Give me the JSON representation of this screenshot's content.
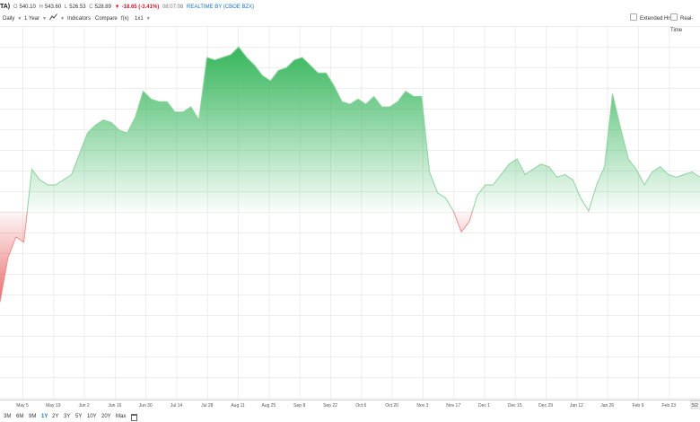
{
  "quote_bar": {
    "symbol": "TA)",
    "open_label": "O",
    "open": "540.10",
    "high_label": "H",
    "high": "543.60",
    "low_label": "L",
    "low": "526.53",
    "close_label": "C",
    "close": "528.89",
    "change": "-18.65 (-3.41%)",
    "time": "08:07:08",
    "realtime": "REALTIME BY (CBOE BZX)"
  },
  "toolbar": {
    "interval": "Daily",
    "period": "1 Year",
    "chart_style_icon": "line-chart-icon",
    "indicators": "Indicators",
    "compare": "Compare",
    "fx": "f(x)",
    "layout": "1x1",
    "extended_hours": "Extended Hrs",
    "real_time": "Real-Time"
  },
  "ranges": {
    "items": [
      "3M",
      "6M",
      "9M",
      "1Y",
      "2Y",
      "3Y",
      "5Y",
      "10Y",
      "20Y",
      "Max"
    ],
    "active": "1Y",
    "calendar_icon": "calendar-icon"
  },
  "colors": {
    "up": "#34b55a",
    "down": "#e23c3c",
    "realtime": "#1a73c9",
    "grid": "#ededed"
  },
  "chart_data": {
    "type": "area",
    "baseline_color_split": true,
    "grid": true,
    "x_tick_labels": [
      "May 5",
      "May 19",
      "Jun 2",
      "Jun 16",
      "Jun 30",
      "Jul 14",
      "Jul 28",
      "Aug 11",
      "Aug 25",
      "Sep 8",
      "Sep 22",
      "Oct 6",
      "Oct 20",
      "Nov 3",
      "Nov 17",
      "Dec 1",
      "Dec 15",
      "Dec 29",
      "Jan 12",
      "Jan 26",
      "Feb 9",
      "Feb 23"
    ],
    "last_label": "5/2",
    "x": [
      "Apr 28",
      "May 1",
      "May 5",
      "May 8",
      "May 12",
      "May 15",
      "May 19",
      "May 22",
      "May 27",
      "May 30",
      "Jun 2",
      "Jun 5",
      "Jun 9",
      "Jun 12",
      "Jun 16",
      "Jun 19",
      "Jun 23",
      "Jun 26",
      "Jun 30",
      "Jul 3",
      "Jul 7",
      "Jul 10",
      "Jul 14",
      "Jul 17",
      "Jul 21",
      "Jul 24",
      "Jul 28",
      "Jul 31",
      "Aug 4",
      "Aug 7",
      "Aug 11",
      "Aug 14",
      "Aug 18",
      "Aug 21",
      "Aug 25",
      "Aug 28",
      "Sep 2",
      "Sep 5",
      "Sep 8",
      "Sep 11",
      "Sep 15",
      "Sep 18",
      "Sep 22",
      "Sep 25",
      "Sep 29",
      "Oct 2",
      "Oct 6",
      "Oct 9",
      "Oct 13",
      "Oct 16",
      "Oct 20",
      "Oct 23",
      "Oct 27",
      "Oct 30",
      "Nov 3",
      "Nov 6",
      "Nov 10",
      "Nov 13",
      "Nov 17",
      "Nov 20",
      "Nov 24",
      "Nov 27",
      "Dec 1",
      "Dec 4",
      "Dec 8",
      "Dec 11",
      "Dec 15",
      "Dec 18",
      "Dec 22",
      "Dec 26",
      "Dec 29",
      "Jan 2",
      "Jan 5",
      "Jan 8",
      "Jan 12",
      "Jan 15",
      "Jan 20",
      "Jan 23",
      "Jan 26",
      "Jan 29",
      "Feb 2",
      "Feb 5",
      "Feb 9",
      "Feb 12",
      "Feb 17",
      "Feb 20",
      "Feb 23",
      "Feb 26",
      "Mar 2"
    ],
    "relative_level": [
      0.05,
      0.22,
      0.3,
      0.28,
      0.56,
      0.52,
      0.5,
      0.5,
      0.52,
      0.54,
      0.62,
      0.7,
      0.73,
      0.75,
      0.74,
      0.71,
      0.7,
      0.76,
      0.86,
      0.83,
      0.82,
      0.82,
      0.78,
      0.78,
      0.8,
      0.75,
      0.99,
      0.98,
      0.99,
      1.0,
      1.03,
      0.99,
      0.96,
      0.92,
      0.9,
      0.94,
      0.95,
      0.98,
      0.99,
      0.96,
      0.93,
      0.93,
      0.88,
      0.82,
      0.81,
      0.83,
      0.81,
      0.84,
      0.8,
      0.8,
      0.82,
      0.86,
      0.84,
      0.84,
      0.55,
      0.47,
      0.45,
      0.4,
      0.32,
      0.36,
      0.46,
      0.5,
      0.5,
      0.54,
      0.58,
      0.6,
      0.54,
      0.56,
      0.58,
      0.57,
      0.53,
      0.54,
      0.52,
      0.45,
      0.4,
      0.5,
      0.57,
      0.85,
      0.72,
      0.6,
      0.56,
      0.5,
      0.55,
      0.57,
      0.54,
      0.53,
      0.54,
      0.55,
      0.53
    ]
  }
}
